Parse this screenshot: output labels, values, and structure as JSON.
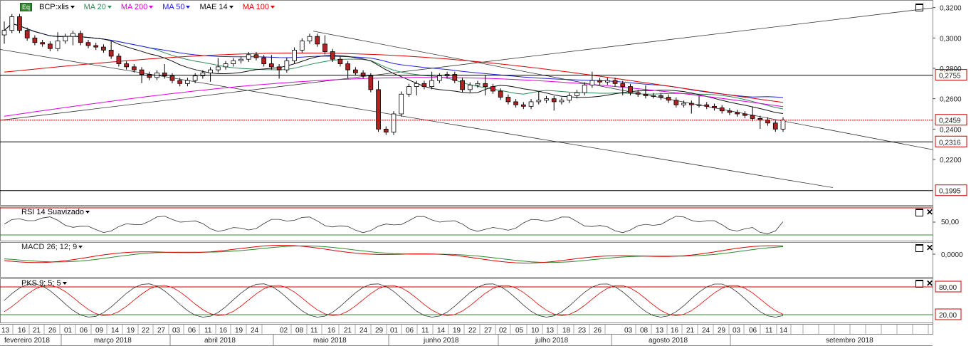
{
  "header": {
    "eq_badge": "Eq",
    "symbol": "BCP:xlis",
    "indicators": [
      {
        "label": "MA 20",
        "color": "#2e8b57"
      },
      {
        "label": "MA 200",
        "color": "#e000e0"
      },
      {
        "label": "MA 50",
        "color": "#2222dd"
      },
      {
        "label": "MAE 14",
        "color": "#111111"
      },
      {
        "label": "MA 100",
        "color": "#e00000"
      }
    ]
  },
  "panels": {
    "rsi": {
      "title": "RSI 14 Suavizado",
      "ticks": [
        "50,00"
      ]
    },
    "macd": {
      "title": "MACD 26; 12; 9",
      "ticks": [
        "0,0000"
      ]
    },
    "pks": {
      "title": "PKS 9; 5; 5",
      "ticks": [
        "80,00",
        "20,00"
      ]
    }
  },
  "price_axis": {
    "ticks": [
      "0,3200",
      "0,3000",
      "0,2800",
      "0,2600",
      "0,2400",
      "0,2200"
    ],
    "boxed_levels": [
      "0,2755",
      "0,2459",
      "0,2316",
      "0,1995"
    ]
  },
  "date_axis": {
    "days": [
      "13",
      "16",
      "21",
      "26",
      "01",
      "06",
      "09",
      "14",
      "19",
      "22",
      "27",
      "03",
      "06",
      "11",
      "16",
      "19",
      "24",
      "02",
      "08",
      "11",
      "16",
      "21",
      "24",
      "29",
      "01",
      "06",
      "11",
      "14",
      "19",
      "22",
      "27",
      "02",
      "05",
      "10",
      "13",
      "18",
      "23",
      "26",
      "03",
      "08",
      "13",
      "16",
      "21",
      "24",
      "29",
      "03",
      "06",
      "11",
      "14"
    ],
    "months": [
      "fevereiro 2018",
      "março 2018",
      "abril 2018",
      "maio 2018",
      "junho 2018",
      "julho 2018",
      "agosto 2018",
      "setembro 2018"
    ]
  },
  "chart_data": {
    "type": "candlestick",
    "price_range": [
      0.19,
      0.325
    ],
    "closes": [
      0.305,
      0.314,
      0.305,
      0.3,
      0.297,
      0.296,
      0.293,
      0.298,
      0.301,
      0.303,
      0.297,
      0.295,
      0.294,
      0.292,
      0.288,
      0.283,
      0.281,
      0.279,
      0.276,
      0.274,
      0.277,
      0.275,
      0.272,
      0.27,
      0.272,
      0.275,
      0.277,
      0.279,
      0.281,
      0.283,
      0.285,
      0.286,
      0.289,
      0.287,
      0.283,
      0.281,
      0.279,
      0.285,
      0.292,
      0.298,
      0.301,
      0.296,
      0.291,
      0.286,
      0.283,
      0.279,
      0.277,
      0.275,
      0.266,
      0.24,
      0.238,
      0.25,
      0.263,
      0.268,
      0.27,
      0.268,
      0.272,
      0.275,
      0.276,
      0.272,
      0.266,
      0.269,
      0.27,
      0.268,
      0.265,
      0.261,
      0.258,
      0.256,
      0.255,
      0.258,
      0.259,
      0.26,
      0.258,
      0.259,
      0.262,
      0.264,
      0.269,
      0.272,
      0.271,
      0.272,
      0.27,
      0.268,
      0.264,
      0.263,
      0.262,
      0.262,
      0.261,
      0.259,
      0.256,
      0.257,
      0.256,
      0.256,
      0.255,
      0.254,
      0.252,
      0.251,
      0.25,
      0.249,
      0.247,
      0.246,
      0.244,
      0.24,
      0.246
    ],
    "levels": [
      0.2755,
      0.2459,
      0.2316,
      0.1995
    ]
  }
}
